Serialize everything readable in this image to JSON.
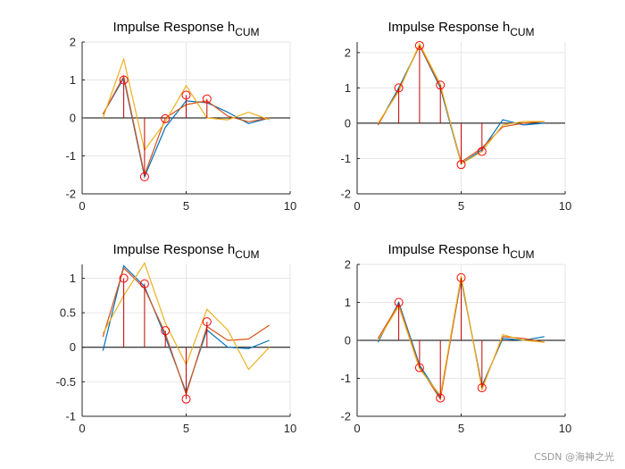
{
  "colors": {
    "axis": "#262626",
    "grid": "#e6e6e6",
    "stem": "#c00000",
    "series_blue": "#0072BD",
    "series_orange": "#D95319",
    "series_yellow": "#EDB120",
    "zero_line": "#000000"
  },
  "watermark": "CSDN @海神之光",
  "chart_data": [
    {
      "type": "line",
      "title": "Impulse Response h",
      "title_subscript": "CUM",
      "xlim": [
        0,
        10
      ],
      "ylim": [
        -2,
        2
      ],
      "xticks": [
        0,
        5,
        10
      ],
      "yticks": [
        -2,
        -1,
        0,
        1,
        2
      ],
      "ytick_labels": [
        "-2",
        "-1",
        "0",
        "1",
        "2"
      ],
      "grid": true,
      "stems": {
        "x": [
          2,
          3,
          4,
          5,
          6
        ],
        "y": [
          1.0,
          -1.55,
          -0.02,
          0.6,
          0.5
        ]
      },
      "series": [
        {
          "name": "blue",
          "x": [
            1,
            2,
            3,
            4,
            5,
            6,
            7,
            8,
            9
          ],
          "values": [
            0.1,
            1.05,
            -1.55,
            -0.25,
            0.45,
            0.4,
            0.15,
            -0.15,
            0.0
          ]
        },
        {
          "name": "orange",
          "x": [
            1,
            2,
            3,
            4,
            5,
            6,
            7,
            8,
            9
          ],
          "values": [
            0.1,
            1.1,
            -1.5,
            0.0,
            0.35,
            0.45,
            0.05,
            -0.1,
            0.0
          ]
        },
        {
          "name": "yellow",
          "x": [
            1,
            2,
            3,
            4,
            5,
            6,
            7,
            8,
            9
          ],
          "values": [
            0.0,
            1.55,
            -0.85,
            -0.1,
            0.85,
            0.0,
            -0.05,
            0.15,
            -0.05
          ]
        }
      ]
    },
    {
      "type": "line",
      "title": "Impulse Response h",
      "title_subscript": "CUM",
      "xlim": [
        0,
        10
      ],
      "ylim": [
        -2,
        2.3
      ],
      "xticks": [
        0,
        5,
        10
      ],
      "yticks": [
        -2,
        -1,
        0,
        1,
        2
      ],
      "ytick_labels": [
        "-2",
        "-1",
        "0",
        "1",
        "2"
      ],
      "grid": true,
      "stems": {
        "x": [
          2,
          3,
          4,
          5,
          6
        ],
        "y": [
          1.0,
          2.2,
          1.08,
          -1.17,
          -0.8
        ]
      },
      "series": [
        {
          "name": "blue",
          "x": [
            1,
            2,
            3,
            4,
            5,
            6,
            7,
            8,
            9
          ],
          "values": [
            -0.05,
            1.0,
            2.2,
            1.0,
            -1.15,
            -0.75,
            0.1,
            -0.05,
            0.0
          ]
        },
        {
          "name": "orange",
          "x": [
            1,
            2,
            3,
            4,
            5,
            6,
            7,
            8,
            9
          ],
          "values": [
            -0.05,
            0.95,
            2.2,
            1.05,
            -1.1,
            -0.7,
            -0.1,
            0.0,
            0.05
          ]
        },
        {
          "name": "yellow",
          "x": [
            1,
            2,
            3,
            4,
            5,
            6,
            7,
            8,
            9
          ],
          "values": [
            0.0,
            0.9,
            2.25,
            1.1,
            -1.15,
            -0.8,
            -0.05,
            0.05,
            0.05
          ]
        }
      ]
    },
    {
      "type": "line",
      "title": "Impulse Response h",
      "title_subscript": "CUM",
      "xlim": [
        0,
        10
      ],
      "ylim": [
        -1,
        1.2
      ],
      "xticks": [
        0,
        5,
        10
      ],
      "yticks": [
        -1,
        -0.5,
        0,
        0.5,
        1
      ],
      "ytick_labels": [
        "-1",
        "-0.5",
        "0",
        "0.5",
        "1"
      ],
      "grid": true,
      "stems": {
        "x": [
          2,
          3,
          4,
          5,
          6
        ],
        "y": [
          1.0,
          0.92,
          0.24,
          -0.75,
          0.37
        ]
      },
      "series": [
        {
          "name": "blue",
          "x": [
            1,
            2,
            3,
            4,
            5,
            6,
            7,
            8,
            9
          ],
          "values": [
            -0.05,
            1.18,
            0.88,
            0.15,
            -0.65,
            0.25,
            0.0,
            -0.02,
            0.1
          ]
        },
        {
          "name": "orange",
          "x": [
            1,
            2,
            3,
            4,
            5,
            6,
            7,
            8,
            9
          ],
          "values": [
            0.15,
            1.15,
            0.85,
            0.2,
            -0.68,
            0.3,
            0.1,
            0.12,
            0.32
          ]
        },
        {
          "name": "yellow",
          "x": [
            1,
            2,
            3,
            4,
            5,
            6,
            7,
            8,
            9
          ],
          "values": [
            0.2,
            0.75,
            1.22,
            0.35,
            -0.25,
            0.55,
            0.25,
            -0.32,
            0.0
          ]
        }
      ]
    },
    {
      "type": "line",
      "title": "Impulse Response h",
      "title_subscript": "CUM",
      "xlim": [
        0,
        10
      ],
      "ylim": [
        -2,
        2
      ],
      "xticks": [
        0,
        5,
        10
      ],
      "yticks": [
        -2,
        -1,
        0,
        1,
        2
      ],
      "ytick_labels": [
        "-2",
        "-1",
        "0",
        "1",
        "2"
      ],
      "grid": true,
      "stems": {
        "x": [
          2,
          3,
          4,
          5,
          6
        ],
        "y": [
          1.0,
          -0.72,
          -1.52,
          1.65,
          -1.25
        ]
      },
      "series": [
        {
          "name": "blue",
          "x": [
            1,
            2,
            3,
            4,
            5,
            6,
            7,
            8,
            9
          ],
          "values": [
            -0.05,
            1.0,
            -0.65,
            -1.5,
            1.6,
            -1.2,
            0.05,
            0.0,
            0.1
          ]
        },
        {
          "name": "orange",
          "x": [
            1,
            2,
            3,
            4,
            5,
            6,
            7,
            8,
            9
          ],
          "values": [
            0.05,
            0.95,
            -0.7,
            -1.55,
            1.65,
            -1.25,
            0.1,
            0.05,
            -0.05
          ]
        },
        {
          "name": "yellow",
          "x": [
            1,
            2,
            3,
            4,
            5,
            6,
            7,
            8,
            9
          ],
          "values": [
            0.0,
            0.9,
            -0.75,
            -1.45,
            1.7,
            -1.3,
            0.15,
            0.0,
            -0.05
          ]
        }
      ]
    }
  ]
}
